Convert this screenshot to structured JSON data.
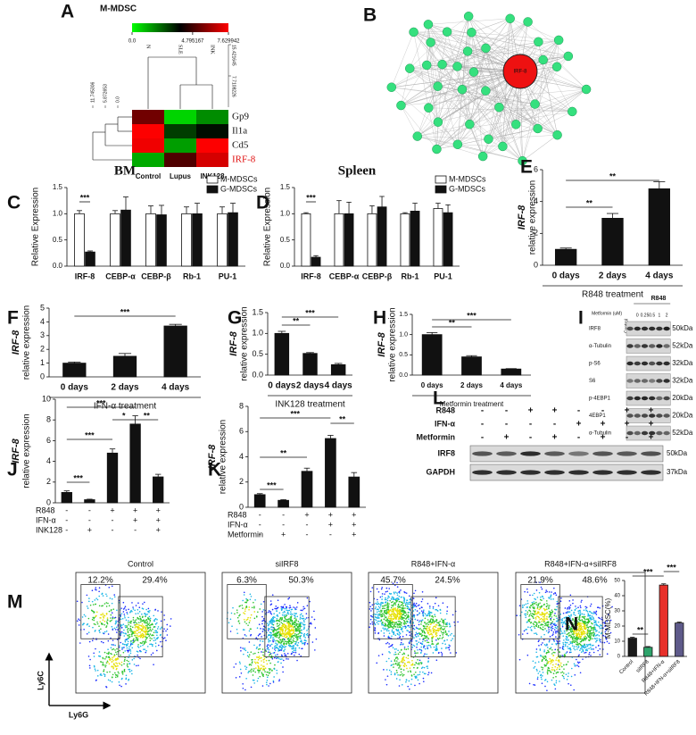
{
  "chart_data": [
    {
      "type": "heatmap",
      "panel": "A",
      "title": "M-MDSC",
      "zlim": [
        0,
        7.629942
      ],
      "colorbar_ticks": [
        {
          "value": 0,
          "label": "0.0"
        },
        4.795167,
        7.629942
      ],
      "column_labels": [
        "N",
        "SLE",
        "INK"
      ],
      "categories": [
        "Control",
        "Lupus",
        "INK128"
      ],
      "rows": [
        "Gp9",
        "Il1a",
        "Cd5",
        "IRF-8"
      ],
      "row_colors": [
        "#111111",
        "#111111",
        "#111111",
        "#e01010"
      ],
      "values": [
        [
          5.5,
          0.3,
          1.5
        ],
        [
          7.6,
          2.8,
          3.6
        ],
        [
          7.4,
          1.2,
          7.6
        ],
        [
          1.0,
          5.0,
          7.0
        ]
      ],
      "col_dendro_ticks": [
        15.421645,
        7.7108226
      ],
      "row_dendro_ticks": [
        11.745306,
        5.872653,
        {
          "value": 0,
          "label": "0.0"
        }
      ]
    },
    {
      "type": "network",
      "panel": "B",
      "center": "IRF-8"
    },
    {
      "type": "bar",
      "panel": "C",
      "title": "BM",
      "ylabel": "Relative Expression",
      "categories": [
        "IRF-8",
        "CEBP-α",
        "CEBP-β",
        "Rb-1",
        "PU-1"
      ],
      "series": [
        {
          "name": "M-MDSCs",
          "color": "#ffffff",
          "values": [
            1.0,
            1.0,
            1.0,
            1.0,
            1.0
          ],
          "errors": [
            0.06,
            0.06,
            0.15,
            0.13,
            0.13
          ]
        },
        {
          "name": "G-MDSCs",
          "color": "#111111",
          "values": [
            0.27,
            1.07,
            0.98,
            1.0,
            1.02
          ],
          "errors": [
            0.02,
            0.25,
            0.18,
            0.2,
            0.18
          ]
        }
      ],
      "ylim": [
        0,
        1.5
      ],
      "yticks": [
        {
          "value": 0,
          "label": "0.0"
        },
        0.5,
        {
          "value": 1,
          "label": "1.0"
        },
        1.5
      ],
      "significance": [
        "***"
      ]
    },
    {
      "type": "bar",
      "panel": "D",
      "title": "Spleen",
      "ylabel": "Relative Expression",
      "categories": [
        "IRF-8",
        "CEBP-α",
        "CEBP-β",
        "Rb-1",
        "PU-1"
      ],
      "series": [
        {
          "name": "M-MDSCs",
          "color": "#ffffff",
          "values": [
            1.0,
            1.0,
            1.0,
            1.0,
            1.1
          ],
          "errors": [
            0.02,
            0.25,
            0.15,
            0.02,
            0.1
          ]
        },
        {
          "name": "G-MDSCs",
          "color": "#111111",
          "values": [
            0.17,
            1.0,
            1.13,
            1.05,
            1.02
          ],
          "errors": [
            0.03,
            0.22,
            0.2,
            0.15,
            0.15
          ]
        }
      ],
      "ylim": [
        0,
        1.5
      ],
      "yticks": [
        {
          "value": 0,
          "label": "0.0"
        },
        0.5,
        {
          "value": 1,
          "label": "1.0"
        },
        1.5
      ],
      "significance": [
        "***"
      ]
    },
    {
      "type": "bar",
      "panel": "E",
      "ylabel_gene": "IRF-8",
      "ylabel": "relative expression",
      "xlabel": "R848 treatment",
      "categories": [
        "0 days",
        "2 days",
        "4 days"
      ],
      "values": [
        1.0,
        2.95,
        4.8
      ],
      "errors": [
        0.08,
        0.3,
        0.45
      ],
      "color": "#111111",
      "ylim": [
        0,
        6
      ],
      "yticks": [
        0,
        2,
        4,
        6
      ],
      "significance": [
        "**",
        "**"
      ]
    },
    {
      "type": "bar",
      "panel": "F",
      "ylabel_gene": "IRF-8",
      "ylabel": "relative expression",
      "xlabel": "IFN-α treatment",
      "categories": [
        "0 days",
        "2 days",
        "4 days"
      ],
      "values": [
        1.0,
        1.5,
        3.7
      ],
      "errors": [
        0.08,
        0.2,
        0.12
      ],
      "color": "#111111",
      "ylim": [
        0,
        5
      ],
      "yticks": [
        0,
        1,
        2,
        3,
        4,
        5
      ],
      "significance": [
        "***"
      ]
    },
    {
      "type": "bar",
      "panel": "G",
      "ylabel_gene": "IRF-8",
      "ylabel": "relative expression",
      "xlabel": "INK128 treatment",
      "categories": [
        "0 days",
        "2 days",
        "4 days"
      ],
      "values": [
        1.0,
        0.52,
        0.25
      ],
      "errors": [
        0.05,
        0.02,
        0.03
      ],
      "color": "#111111",
      "ylim": [
        0,
        1.5
      ],
      "yticks": [
        {
          "value": 0,
          "label": "0.0"
        },
        0.5,
        {
          "value": 1,
          "label": "1.0"
        },
        1.5
      ],
      "significance": [
        "**",
        "***"
      ]
    },
    {
      "type": "bar",
      "panel": "H",
      "ylabel_gene": "IRF-8",
      "ylabel": "relative expression",
      "xlabel": "Metformin treatment",
      "categories": [
        "0 days",
        "2 days",
        "4 days"
      ],
      "values": [
        1.0,
        0.45,
        0.15
      ],
      "errors": [
        0.05,
        0.03,
        0.01
      ],
      "color": "#111111",
      "ylim": [
        0,
        1.5
      ],
      "yticks": [
        {
          "value": 0,
          "label": "0.0"
        },
        0.5,
        {
          "value": 1,
          "label": "1.0"
        },
        1.5
      ],
      "significance": [
        "**",
        "***"
      ]
    },
    {
      "type": "blot",
      "panel": "I",
      "header": "R848",
      "row_label": "Metformin (uM)",
      "lanes": [
        "Control",
        "0",
        "0.25",
        "0.5",
        "1",
        "2"
      ],
      "rows": [
        {
          "name": "IRF8",
          "size": "50kDa"
        },
        {
          "name": "α-Tubulin",
          "size": "52kDa"
        },
        {
          "name": "p-S6",
          "size": "32kDa"
        },
        {
          "name": "S6",
          "size": "32kDa"
        },
        {
          "name": "p-4EBP1",
          "size": "20kDa"
        },
        {
          "name": "4EBP1",
          "size": "20kDa"
        },
        {
          "name": "α-Tubulin",
          "size": "52kDa"
        }
      ]
    },
    {
      "type": "bar",
      "panel": "J",
      "ylabel_gene": "IRF-8",
      "ylabel": "relative expression",
      "values": [
        1.0,
        0.3,
        4.8,
        7.6,
        2.5
      ],
      "errors": [
        0.15,
        0.05,
        0.4,
        0.8,
        0.25
      ],
      "color": "#111111",
      "ylim": [
        0,
        10
      ],
      "yticks": [
        0,
        2,
        4,
        6,
        8,
        10
      ],
      "conditions": [
        {
          "name": "R848",
          "values": [
            "-",
            "-",
            "+",
            "+",
            "+"
          ]
        },
        {
          "name": "IFN-α",
          "values": [
            "-",
            "-",
            "-",
            "+",
            "+"
          ]
        },
        {
          "name": "INK128",
          "values": [
            "-",
            "+",
            "-",
            "-",
            "+"
          ]
        }
      ],
      "significance": [
        "***",
        "***",
        "***",
        "*",
        "**"
      ]
    },
    {
      "type": "bar",
      "panel": "K",
      "ylabel_gene": "IRF-8",
      "ylabel": "relative expression",
      "values": [
        1.0,
        0.55,
        2.85,
        5.45,
        2.4
      ],
      "errors": [
        0.08,
        0.05,
        0.25,
        0.25,
        0.35
      ],
      "color": "#111111",
      "ylim": [
        0,
        8
      ],
      "yticks": [
        0,
        2,
        4,
        6,
        8
      ],
      "conditions": [
        {
          "name": "R848",
          "values": [
            "-",
            "-",
            "+",
            "+",
            "+"
          ]
        },
        {
          "name": "IFN-α",
          "values": [
            "-",
            "-",
            "-",
            "+",
            "+"
          ]
        },
        {
          "name": "Metformin",
          "values": [
            "-",
            "+",
            "-",
            "-",
            "+"
          ]
        }
      ],
      "significance": [
        "***",
        "**",
        "***",
        "**"
      ]
    },
    {
      "type": "blot",
      "panel": "L",
      "conditions": [
        {
          "name": "R848",
          "values": [
            "-",
            "-",
            "+",
            "+",
            "-",
            "-",
            "+",
            "+"
          ]
        },
        {
          "name": "IFN-α",
          "values": [
            "-",
            "-",
            "-",
            "-",
            "+",
            "+",
            "+",
            "+"
          ]
        },
        {
          "name": "Metformin",
          "values": [
            "-",
            "+",
            "-",
            "+",
            "-",
            "+",
            "-",
            "+"
          ]
        }
      ],
      "rows": [
        {
          "name": "IRF8",
          "size": "50kDa"
        },
        {
          "name": "GAPDH",
          "size": "37kDa"
        }
      ]
    },
    {
      "type": "flow",
      "panel": "M",
      "xlabel": "Ly6G",
      "ylabel": "Ly6C",
      "plots": [
        {
          "title": "Control",
          "values": [
            12.2,
            29.4
          ],
          "value_labels": [
            "12.2%",
            "29.4%"
          ]
        },
        {
          "title": "siIRF8",
          "values": [
            6.3,
            50.3
          ],
          "value_labels": [
            "6.3%",
            "50.3%"
          ]
        },
        {
          "title": "R848+IFN-α",
          "values": [
            45.7,
            24.5
          ],
          "value_labels": [
            "45.7%",
            "24.5%"
          ]
        },
        {
          "title": "R848+IFN-α+siIRF8",
          "values": [
            21.9,
            48.6
          ],
          "value_labels": [
            "21.9%",
            "48.6%"
          ]
        }
      ]
    },
    {
      "type": "bar",
      "panel": "N",
      "ylabel": "M-MDSC(%)",
      "categories": [
        "Control",
        "siIRF8",
        "R848+IFN-α",
        "R848+IFN-α+siIRF8"
      ],
      "values": [
        12,
        6,
        47,
        22
      ],
      "errors": [
        0.6,
        0.5,
        0.8,
        0.6
      ],
      "colors": [
        "#1a1a1a",
        "#2ea36b",
        "#e8302a",
        "#5e5a8a"
      ],
      "ylim": [
        0,
        50
      ],
      "yticks": [
        0,
        10,
        20,
        30,
        40,
        50
      ],
      "significance": [
        "**",
        "***",
        "***"
      ]
    }
  ]
}
